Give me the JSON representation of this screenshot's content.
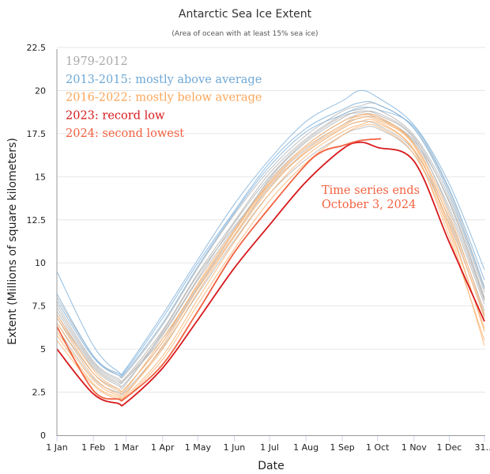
{
  "chart_data": {
    "type": "line",
    "title": "Antarctic Sea Ice Extent",
    "subtitle": "(Area of ocean with at least 15% sea ice)",
    "xlabel": "Date",
    "ylabel": "Extent (Millions of square kilometers)",
    "ylim": [
      0,
      22.5
    ],
    "yticks": [
      0,
      2.5,
      5,
      7.5,
      10,
      12.5,
      15,
      17.5,
      20,
      22.5
    ],
    "ytick_labels": [
      "0",
      "2.5",
      "5",
      "7.5",
      "10",
      "12.5",
      "15",
      "17.5",
      "20",
      "22.5"
    ],
    "xlim_day_of_year": [
      0,
      364
    ],
    "xticks_day_of_year": [
      0,
      31,
      59,
      90,
      120,
      151,
      181,
      212,
      243,
      273,
      304,
      334,
      364
    ],
    "xtick_labels": [
      "1 Jan",
      "1 Feb",
      "1 Mar",
      "1 Apr",
      "1 May",
      "1 Jun",
      "1 Jul",
      "1 Aug",
      "1 Sep",
      "1 Oct",
      "1 Nov",
      "1 Dec",
      "31…"
    ],
    "grid": true,
    "legend_placement": "top-left",
    "legend": [
      {
        "label": "1979-2012",
        "color": "#aaaaaa"
      },
      {
        "label": "2013-2015: mostly above average",
        "color": "#6fa8d6"
      },
      {
        "label": "2016-2022: mostly below average",
        "color": "#f9a65a"
      },
      {
        "label": "2023: record low",
        "color": "#d7191c"
      },
      {
        "label": "2024: second lowest",
        "color": "#f26241"
      }
    ],
    "annotation": [
      "Time series ends",
      "October 3, 2024"
    ],
    "annotation_color": "#f26241",
    "x_days": [
      0,
      31,
      52,
      59,
      90,
      120,
      151,
      181,
      212,
      243,
      258,
      273,
      304,
      334,
      364
    ],
    "series": [
      {
        "name": "1979-2012 (a)",
        "group": "1979-2012",
        "color": "#b4b4b4",
        "values": [
          7.0,
          4.0,
          3.0,
          3.1,
          5.8,
          9.0,
          12.0,
          14.8,
          16.8,
          18.2,
          18.6,
          18.5,
          17.0,
          13.2,
          7.8
        ]
      },
      {
        "name": "1979-2012 (b)",
        "group": "1979-2012",
        "color": "#b4b4b4",
        "values": [
          7.6,
          4.3,
          3.3,
          3.4,
          6.1,
          9.4,
          12.4,
          15.2,
          17.2,
          18.6,
          18.9,
          18.9,
          17.4,
          13.8,
          8.3
        ]
      },
      {
        "name": "1979-2012 (c)",
        "group": "1979-2012",
        "color": "#b4b4b4",
        "values": [
          6.5,
          3.6,
          2.7,
          2.8,
          5.4,
          8.5,
          11.6,
          14.4,
          16.4,
          17.8,
          18.2,
          18.0,
          16.5,
          12.6,
          7.2
        ]
      },
      {
        "name": "1979-2012 (d)",
        "group": "1979-2012",
        "color": "#b4b4b4",
        "values": [
          8.0,
          4.6,
          3.5,
          3.6,
          6.4,
          9.7,
          12.8,
          15.4,
          17.4,
          18.8,
          19.1,
          19.2,
          17.8,
          14.2,
          8.6
        ]
      },
      {
        "name": "1979-2012 (e)",
        "group": "1979-2012",
        "color": "#b4b4b4",
        "values": [
          6.2,
          3.3,
          2.5,
          2.6,
          5.1,
          8.2,
          11.3,
          14.0,
          16.0,
          17.4,
          17.8,
          17.8,
          16.3,
          12.3,
          6.9
        ]
      },
      {
        "name": "1979-2012 (f)",
        "group": "1979-2012",
        "color": "#b4b4b4",
        "values": [
          7.2,
          4.1,
          3.1,
          3.3,
          5.6,
          8.6,
          11.8,
          14.9,
          17.0,
          18.4,
          18.8,
          18.6,
          17.2,
          13.0,
          7.6
        ]
      },
      {
        "name": "1979-2012 (g)",
        "group": "1979-2012",
        "color": "#b4b4b4",
        "values": [
          6.8,
          3.9,
          2.9,
          3.0,
          6.0,
          9.3,
          12.1,
          14.6,
          16.6,
          18.0,
          18.4,
          18.4,
          17.1,
          13.6,
          8.0
        ]
      },
      {
        "name": "1979-2012 (h)",
        "group": "1979-2012",
        "color": "#b4b4b4",
        "values": [
          7.4,
          4.2,
          3.2,
          3.3,
          5.9,
          9.1,
          12.3,
          15.0,
          17.1,
          18.5,
          18.7,
          18.7,
          17.3,
          13.5,
          7.9
        ]
      },
      {
        "name": "2016-2022 (a)",
        "group": "2016-2022",
        "color": "#f9b06e",
        "values": [
          6.5,
          3.4,
          2.4,
          2.5,
          5.0,
          8.3,
          11.5,
          14.3,
          16.5,
          17.9,
          18.4,
          18.3,
          16.8,
          12.0,
          6.2
        ]
      },
      {
        "name": "2016-2022 (b)",
        "group": "2016-2022",
        "color": "#f9b06e",
        "values": [
          5.8,
          3.0,
          2.2,
          2.3,
          4.6,
          7.9,
          11.2,
          14.0,
          16.2,
          17.6,
          18.0,
          18.1,
          16.5,
          11.5,
          5.5
        ]
      },
      {
        "name": "2016-2022 (c)",
        "group": "2016-2022",
        "color": "#f9b06e",
        "values": [
          7.0,
          3.8,
          2.7,
          2.8,
          5.4,
          8.8,
          11.9,
          14.7,
          16.8,
          18.2,
          18.5,
          18.5,
          16.9,
          12.5,
          6.8
        ]
      },
      {
        "name": "2016-2022 (d)",
        "group": "2016-2022",
        "color": "#f9b06e",
        "values": [
          6.0,
          3.2,
          2.3,
          2.4,
          5.2,
          8.5,
          11.6,
          14.5,
          16.4,
          17.8,
          18.2,
          18.2,
          16.6,
          12.2,
          6.0
        ]
      },
      {
        "name": "2016-2022 (e)",
        "group": "2016-2022",
        "color": "#f9b06e",
        "values": [
          6.8,
          3.6,
          2.6,
          2.7,
          5.6,
          8.7,
          11.8,
          14.6,
          16.7,
          18.0,
          18.6,
          18.4,
          16.9,
          12.8,
          7.0
        ]
      },
      {
        "name": "2016-2022 (f)",
        "group": "2016-2022",
        "color": "#f9b06e",
        "values": [
          5.5,
          2.9,
          2.1,
          2.2,
          4.4,
          7.6,
          10.8,
          13.6,
          15.8,
          17.4,
          17.9,
          17.9,
          16.3,
          11.8,
          5.2
        ]
      },
      {
        "name": "2013",
        "group": "2013-2015",
        "color": "#7fb2dc",
        "values": [
          8.2,
          4.6,
          3.6,
          3.8,
          6.8,
          10.0,
          13.0,
          15.8,
          17.8,
          18.9,
          19.3,
          19.2,
          17.8,
          14.0,
          8.5
        ]
      },
      {
        "name": "2014",
        "group": "2013-2015",
        "color": "#7fb2dc",
        "values": [
          9.5,
          5.2,
          3.7,
          3.9,
          7.0,
          10.2,
          13.4,
          16.0,
          18.2,
          19.4,
          20.0,
          19.6,
          18.0,
          14.6,
          9.6
        ]
      },
      {
        "name": "2015",
        "group": "2013-2015",
        "color": "#7fb2dc",
        "values": [
          7.8,
          4.5,
          3.5,
          3.7,
          6.5,
          9.8,
          12.9,
          15.6,
          17.6,
          18.6,
          19.0,
          18.9,
          17.9,
          14.3,
          9.0
        ]
      },
      {
        "name": "2023",
        "group": "2023",
        "color": "#d7191c",
        "values": [
          5.0,
          2.4,
          1.85,
          1.9,
          3.9,
          6.7,
          9.7,
          12.2,
          14.7,
          16.6,
          17.0,
          16.7,
          15.9,
          11.2,
          6.6
        ]
      },
      {
        "name": "2024",
        "group": "2024",
        "color": "#f26241",
        "x_days": [
          0,
          31,
          52,
          59,
          90,
          120,
          151,
          181,
          212,
          227,
          243,
          258,
          276
        ],
        "values": [
          6.3,
          2.6,
          2.1,
          2.2,
          4.1,
          7.2,
          10.6,
          13.2,
          15.7,
          16.5,
          16.8,
          17.1,
          17.2
        ]
      }
    ]
  }
}
